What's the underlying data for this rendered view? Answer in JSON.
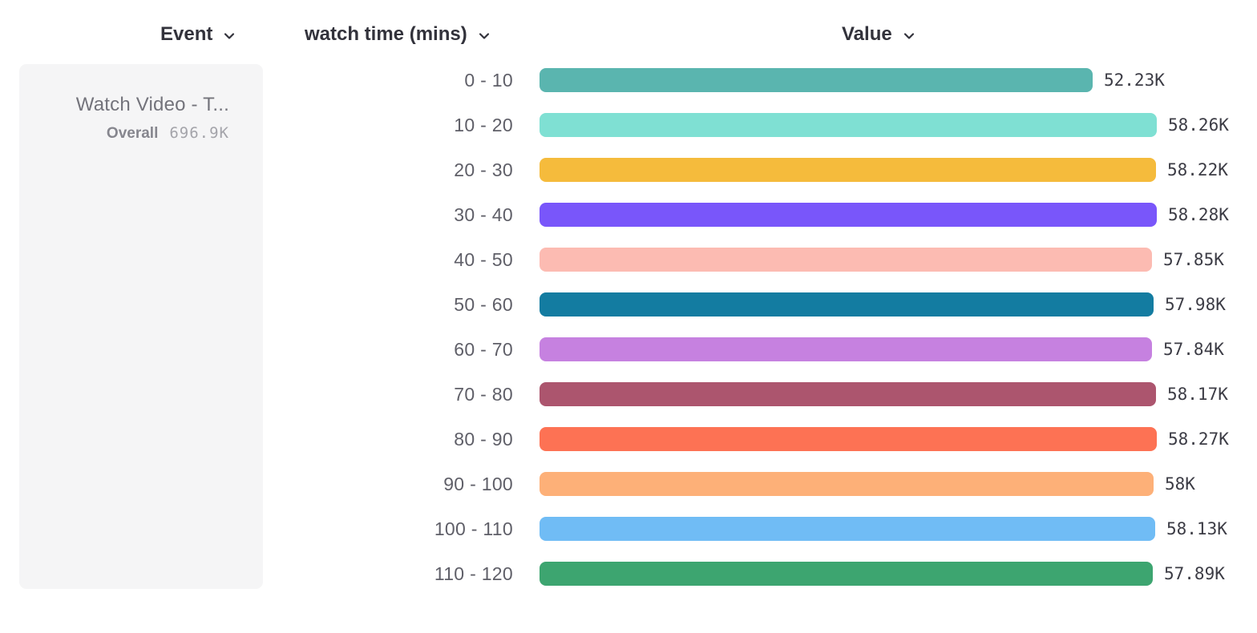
{
  "header": {
    "columns": [
      {
        "id": "event",
        "label": "Event"
      },
      {
        "id": "breakdown",
        "label": "watch time (mins)"
      },
      {
        "id": "value",
        "label": "Value"
      }
    ]
  },
  "event_card": {
    "title": "Watch Video - T...",
    "metric_label": "Overall",
    "metric_value": "696.9K"
  },
  "chart_data": {
    "type": "bar",
    "orientation": "horizontal",
    "xlabel": "Value",
    "ylabel": "watch time (mins)",
    "xlim": [
      0,
      58280
    ],
    "grid": false,
    "categories": [
      "0 - 10",
      "10 - 20",
      "20 - 30",
      "30 - 40",
      "40 - 50",
      "50 - 60",
      "60 - 70",
      "70 - 80",
      "80 - 90",
      "90 - 100",
      "100 - 110",
      "110 - 120"
    ],
    "values": [
      52230,
      58260,
      58220,
      58280,
      57850,
      57980,
      57840,
      58170,
      58270,
      58000,
      58130,
      57890
    ],
    "value_labels": [
      "52.23K",
      "58.26K",
      "58.22K",
      "58.28K",
      "57.85K",
      "57.98K",
      "57.84K",
      "58.17K",
      "58.27K",
      "58K",
      "58.13K",
      "57.89K"
    ],
    "bar_colors": [
      "#5ab5af",
      "#7fe0d3",
      "#f5bb3c",
      "#7956fa",
      "#fcbbb2",
      "#137ca1",
      "#c681e0",
      "#ac556e",
      "#fd7254",
      "#fdb078",
      "#70bcf5",
      "#3da570"
    ]
  },
  "colors": {
    "card_bg": "#f5f5f6",
    "header_text": "#32323b",
    "category_text": "#5f5f68",
    "value_text": "#3c3c45",
    "card_title_text": "#73737b",
    "card_metric_label_text": "#86868e",
    "card_metric_value_text": "#a4a4aa"
  }
}
